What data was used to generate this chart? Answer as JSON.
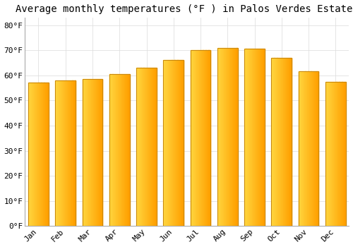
{
  "title": "Average monthly temperatures (°F ) in Palos Verdes Estates",
  "months": [
    "Jan",
    "Feb",
    "Mar",
    "Apr",
    "May",
    "Jun",
    "Jul",
    "Aug",
    "Sep",
    "Oct",
    "Nov",
    "Dec"
  ],
  "values": [
    57,
    58,
    58.5,
    60.5,
    63,
    66,
    70,
    71,
    70.5,
    67,
    61.5,
    57.5
  ],
  "bar_color_left": "#FFD740",
  "bar_color_right": "#FFA000",
  "bar_border_color": "#C8860A",
  "background_color": "#FFFFFF",
  "grid_color": "#E0E0E0",
  "ytick_labels": [
    "0°F",
    "10°F",
    "20°F",
    "30°F",
    "40°F",
    "50°F",
    "60°F",
    "70°F",
    "80°F"
  ],
  "ytick_values": [
    0,
    10,
    20,
    30,
    40,
    50,
    60,
    70,
    80
  ],
  "ylim": [
    0,
    83
  ],
  "title_fontsize": 10,
  "tick_fontsize": 8,
  "font_family": "monospace",
  "bar_width": 0.75,
  "n_gradient_strips": 50
}
